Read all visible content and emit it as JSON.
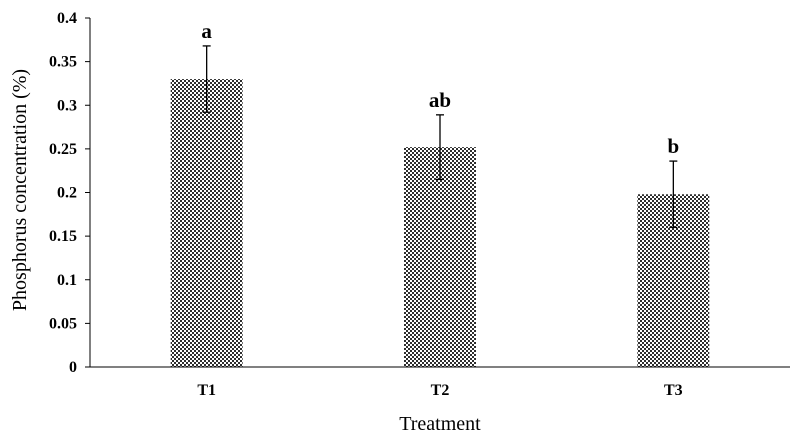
{
  "chart_data": {
    "type": "bar",
    "xlabel": "Treatment",
    "ylabel": "Phosphorus concentration (%)",
    "categories": [
      "T1",
      "T2",
      "T3"
    ],
    "values": [
      0.33,
      0.252,
      0.198
    ],
    "error": [
      0.038,
      0.037,
      0.038
    ],
    "significance_labels": [
      "a",
      "ab",
      "b"
    ],
    "ylim": [
      0,
      0.4
    ],
    "yticks": [
      "0",
      "0.05",
      "0.1",
      "0.15",
      "0.2",
      "0.25",
      "0.3",
      "0.35",
      "0.4"
    ],
    "ytick_values": [
      0,
      0.05,
      0.1,
      0.15,
      0.2,
      0.25,
      0.3,
      0.35,
      0.4
    ],
    "grid": false,
    "bar_fill": "checkered",
    "colors": {
      "bar_dark": "#2e2e2e",
      "bar_light": "#ffffff",
      "axis": "#000000"
    }
  }
}
